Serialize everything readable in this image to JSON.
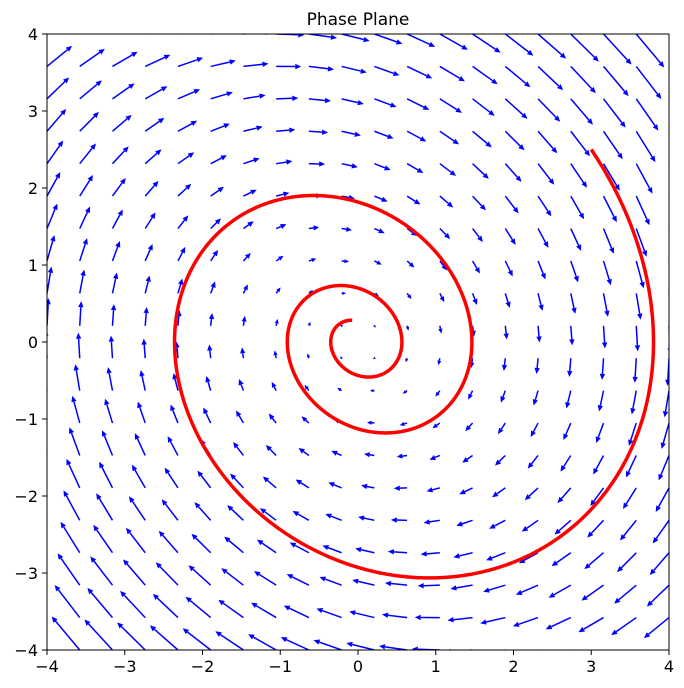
{
  "chart_data": {
    "type": "quiver",
    "title": "Phase Plane",
    "xlabel": "",
    "ylabel": "",
    "xlim": [
      -4,
      4
    ],
    "ylim": [
      -4,
      4
    ],
    "xticks": [
      -4,
      -3,
      -2,
      -1,
      0,
      1,
      2,
      3,
      4
    ],
    "yticks": [
      -4,
      -3,
      -2,
      -1,
      0,
      1,
      2,
      3,
      4
    ],
    "xtick_labels": [
      "−4",
      "−3",
      "−2",
      "−1",
      "0",
      "1",
      "2",
      "3",
      "4"
    ],
    "ytick_labels": [
      "−4",
      "−3",
      "−2",
      "−1",
      "0",
      "1",
      "2",
      "3",
      "4"
    ],
    "grid": false,
    "vector_field": {
      "system": "dx/dt = y, dy/dt = -x - 0.3*y",
      "grid_n": 20,
      "range": [
        -4,
        4
      ],
      "color": "#0000ff"
    },
    "trajectory": {
      "color": "#ff0000",
      "start": [
        3,
        2.5
      ],
      "damping": 0.3,
      "t_end": 18,
      "points": [
        [
          3.0,
          2.5
        ],
        [
          2.6,
          3.0
        ],
        [
          2.0,
          3.4
        ],
        [
          1.4,
          3.58
        ],
        [
          0.9,
          3.62
        ],
        [
          0.3,
          3.55
        ],
        [
          -0.3,
          3.3
        ],
        [
          -0.8,
          2.9
        ],
        [
          -1.2,
          2.2
        ],
        [
          -1.42,
          1.4
        ],
        [
          -1.45,
          0.7
        ],
        [
          -1.3,
          0.0
        ],
        [
          -1.0,
          -0.6
        ],
        [
          -0.6,
          -1.05
        ],
        [
          -0.3,
          -1.2
        ],
        [
          0.1,
          -1.1
        ],
        [
          0.38,
          -0.8
        ],
        [
          0.48,
          -0.3
        ],
        [
          0.4,
          0.1
        ],
        [
          0.2,
          0.38
        ],
        [
          0.05,
          0.4
        ],
        [
          -0.1,
          0.3
        ],
        [
          -0.16,
          0.1
        ]
      ]
    }
  }
}
